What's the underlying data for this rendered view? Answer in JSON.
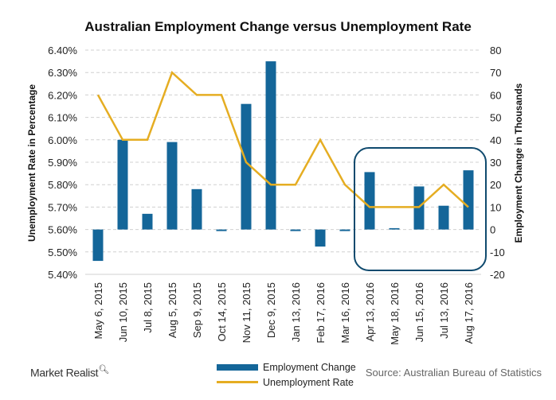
{
  "chart_data": {
    "type": "bar+line",
    "title": "Australian Employment Change versus Unemployment Rate",
    "categories": [
      "May 6, 2015",
      "Jun 10, 2015",
      "Jul 8, 2015",
      "Aug 5, 2015",
      "Sep 9, 2015",
      "Oct 14, 2015",
      "Nov 11, 2015",
      "Dec 9, 2015",
      "Jan 13, 2016",
      "Feb 17, 2016",
      "Mar 16, 2016",
      "Apr 13, 2016",
      "May 18, 2016",
      "Jun 15, 2016",
      "Jul 13, 2016",
      "Aug 17, 2016"
    ],
    "series": [
      {
        "name": "Employment Change",
        "type": "bar",
        "axis": "right",
        "color": "#146699",
        "values": [
          -14,
          40,
          7,
          39,
          18,
          -0.7,
          56,
          75,
          -0.7,
          -7.6,
          -0.7,
          25.6,
          0.6,
          19.2,
          10.6,
          26.4
        ]
      },
      {
        "name": "Unemployment Rate",
        "type": "line",
        "axis": "left",
        "color": "#e5ad22",
        "values": [
          6.2,
          6.0,
          6.0,
          6.3,
          6.2,
          6.2,
          5.9,
          5.8,
          5.8,
          6.0,
          5.8,
          5.7,
          5.7,
          5.7,
          5.8,
          5.7
        ]
      }
    ],
    "ylabel_left": "Unemployment Rate in Percentage",
    "ylabel_right": "Employment Change in Thousands",
    "ylim_left": [
      5.4,
      6.4
    ],
    "ylim_right": [
      -20,
      80
    ],
    "yticks_left": [
      "5.40%",
      "5.50%",
      "5.60%",
      "5.70%",
      "5.80%",
      "5.90%",
      "6.00%",
      "6.10%",
      "6.20%",
      "6.30%",
      "6.40%"
    ],
    "yticks_right": [
      "-20",
      "-10",
      "0",
      "10",
      "20",
      "30",
      "40",
      "50",
      "60",
      "70",
      "80"
    ],
    "grid": "horizontal dashed",
    "legend_placement": "bottom-center",
    "highlight_box": "Apr 13, 2016 – Aug 17, 2016"
  },
  "footer": {
    "logo": "Market Realist",
    "source": "Source: Australian Bureau of Statistics"
  }
}
